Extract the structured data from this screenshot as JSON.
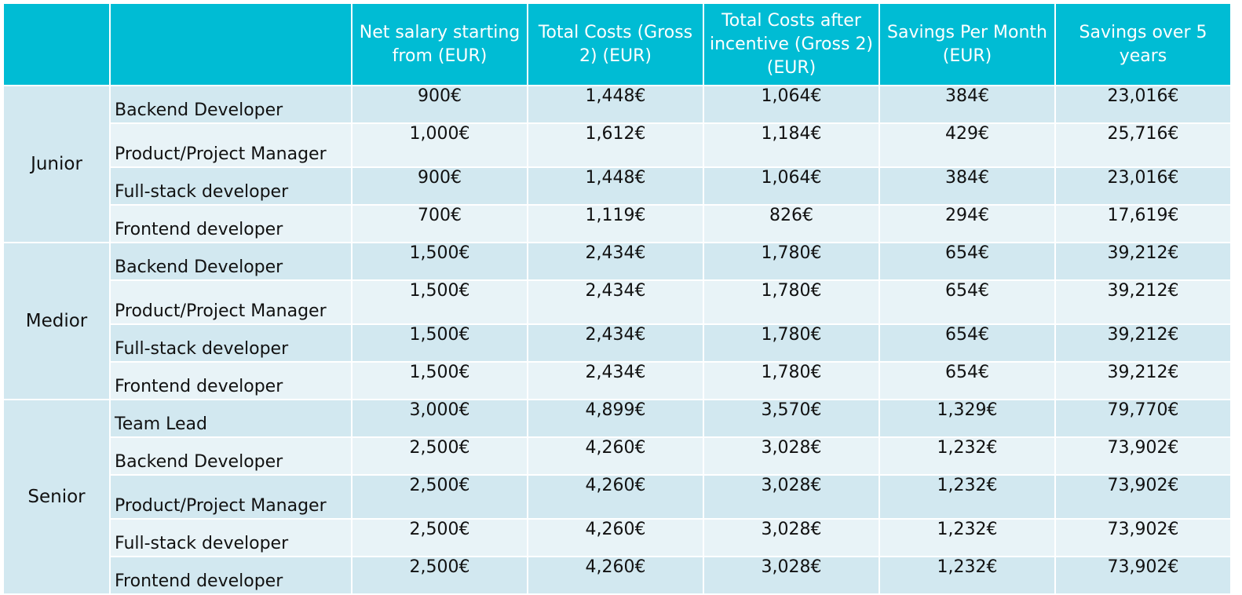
{
  "headers": [
    "",
    "",
    "Net salary starting from (EUR)",
    "Total Costs (Gross 2) (EUR)",
    "Total Costs after incentive (Gross 2) (EUR)",
    "Savings Per Month (EUR)",
    "Savings over 5 years"
  ],
  "groups": [
    {
      "level": "Junior",
      "rows": [
        {
          "role": "Backend Developer",
          "net": "900€",
          "total": "1,448€",
          "after": "1,064€",
          "month": "384€",
          "five": "23,016€"
        },
        {
          "role": "Product/Project Manager",
          "net": "1,000€",
          "total": "1,612€",
          "after": "1,184€",
          "month": "429€",
          "five": "25,716€"
        },
        {
          "role": "Full-stack developer",
          "net": "900€",
          "total": "1,448€",
          "after": "1,064€",
          "month": "384€",
          "five": "23,016€"
        },
        {
          "role": "Frontend developer",
          "net": "700€",
          "total": "1,119€",
          "after": "826€",
          "month": "294€",
          "five": "17,619€"
        }
      ]
    },
    {
      "level": "Medior",
      "rows": [
        {
          "role": "Backend Developer",
          "net": "1,500€",
          "total": "2,434€",
          "after": "1,780€",
          "month": "654€",
          "five": "39,212€"
        },
        {
          "role": "Product/Project Manager",
          "net": "1,500€",
          "total": "2,434€",
          "after": "1,780€",
          "month": "654€",
          "five": "39,212€"
        },
        {
          "role": "Full-stack developer",
          "net": "1,500€",
          "total": "2,434€",
          "after": "1,780€",
          "month": "654€",
          "five": "39,212€"
        },
        {
          "role": "Frontend developer",
          "net": "1,500€",
          "total": "2,434€",
          "after": "1,780€",
          "month": "654€",
          "five": "39,212€"
        }
      ]
    },
    {
      "level": "Senior",
      "rows": [
        {
          "role": "Team Lead",
          "net": "3,000€",
          "total": "4,899€",
          "after": "3,570€",
          "month": "1,329€",
          "five": "79,770€"
        },
        {
          "role": "Backend Developer",
          "net": "2,500€",
          "total": "4,260€",
          "after": "3,028€",
          "month": "1,232€",
          "five": "73,902€"
        },
        {
          "role": "Product/Project Manager",
          "net": "2,500€",
          "total": "4,260€",
          "after": "3,028€",
          "month": "1,232€",
          "five": "73,902€"
        },
        {
          "role": "Full-stack developer",
          "net": "2,500€",
          "total": "4,260€",
          "after": "3,028€",
          "month": "1,232€",
          "five": "73,902€"
        },
        {
          "role": "Frontend developer",
          "net": "2,500€",
          "total": "4,260€",
          "after": "3,028€",
          "month": "1,232€",
          "five": "73,902€"
        }
      ]
    }
  ],
  "colors": {
    "header_bg": "#00bcd4",
    "row_dark": "#d2e8f0",
    "row_light": "#e8f3f7"
  }
}
